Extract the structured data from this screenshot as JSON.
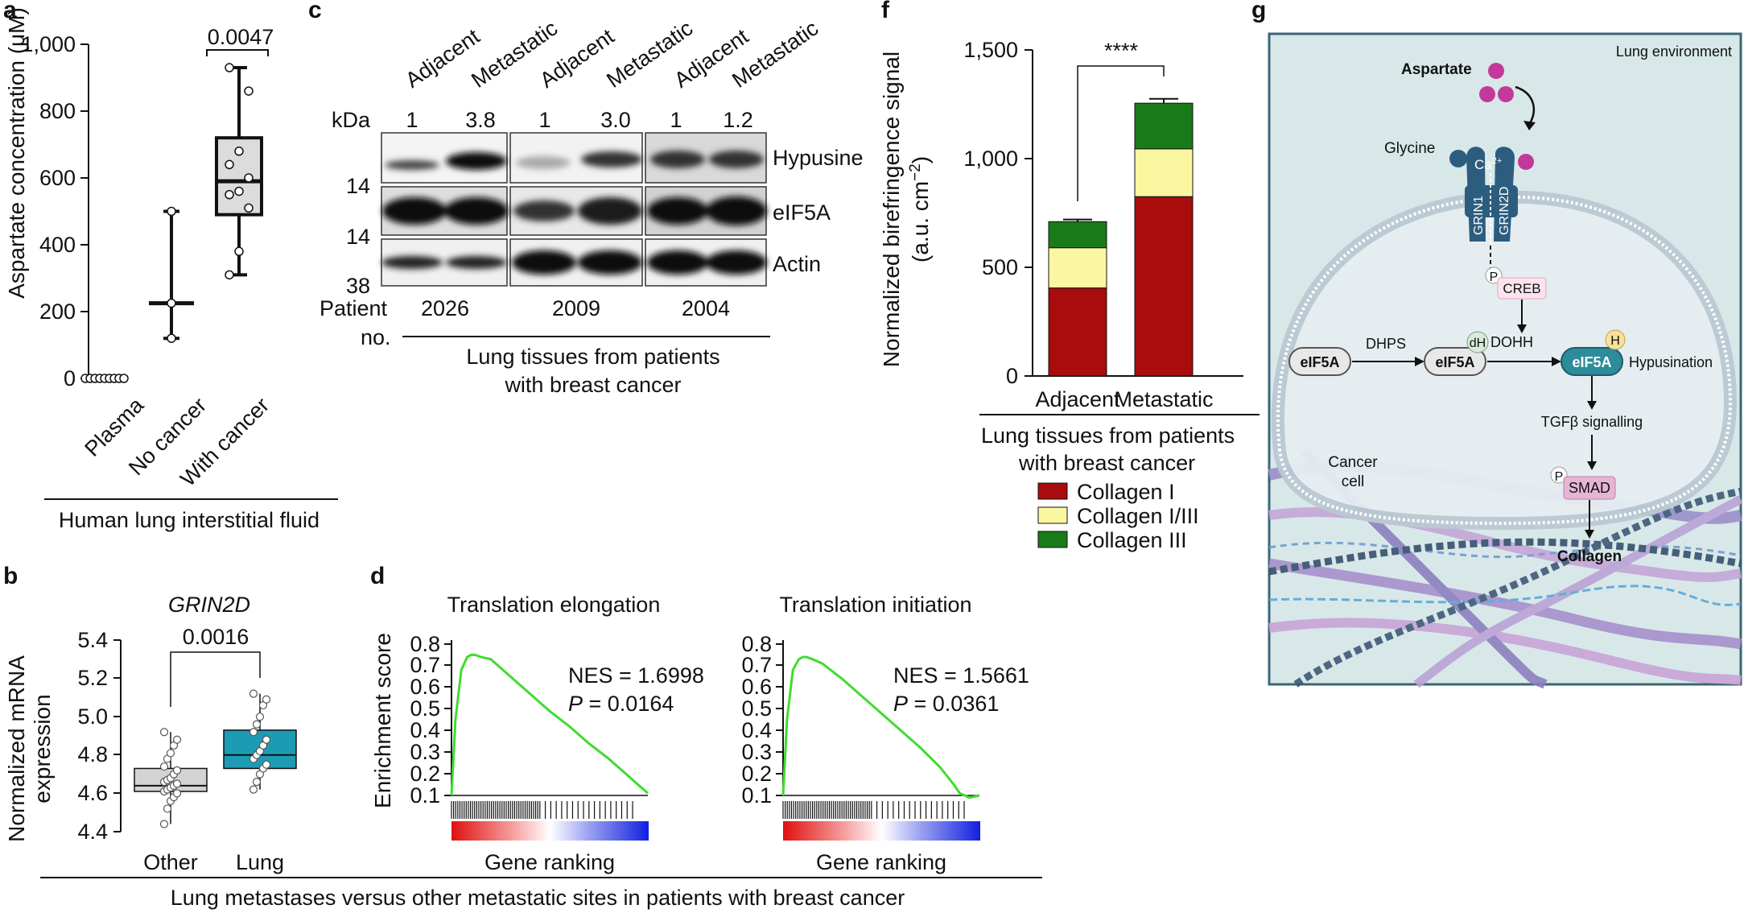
{
  "panels": {
    "a": {
      "letter": "a",
      "ylabel": "Aspartate concentration (μM)",
      "yticks": [
        "1,000",
        "800",
        "600",
        "400",
        "200",
        "0"
      ],
      "categories": [
        "Plasma",
        "No cancer",
        "With cancer"
      ],
      "pvalue": "0.0047",
      "group_label": "Human lung interstitial fluid"
    },
    "b": {
      "letter": "b",
      "gene": "GRIN2D",
      "ylabel_line1": "Normalized mRNA",
      "ylabel_line2": "expression",
      "yticks": [
        "5.4",
        "5.2",
        "5.0",
        "4.8",
        "4.6",
        "4.4"
      ],
      "categories": [
        "Other",
        "Lung"
      ],
      "pvalue": "0.0016",
      "colors": {
        "other": "#d3d3d3",
        "lung": "#1d9bb4"
      }
    },
    "c": {
      "letter": "c",
      "lanes": [
        "Adjacent",
        "Metastatic",
        "Adjacent",
        "Metastatic",
        "Adjacent",
        "Metastatic"
      ],
      "kda_label": "kDa",
      "ratios": [
        "1",
        "3.8",
        "1",
        "3.0",
        "1",
        "1.2"
      ],
      "kda_marks": [
        "14",
        "14",
        "38"
      ],
      "proteins": [
        "Hypusine",
        "eIF5A",
        "Actin"
      ],
      "patient_label_line1": "Patient",
      "patient_label_line2": "no.",
      "patients": [
        "2026",
        "2009",
        "2004"
      ],
      "group_line1": "Lung tissues from patients",
      "group_line2": "with breast cancer"
    },
    "d": {
      "letter": "d",
      "ylabel": "Enrichment score",
      "yticks": [
        "0.8",
        "0.7",
        "0.6",
        "0.5",
        "0.4",
        "0.3",
        "0.2",
        "0.1"
      ],
      "plots": [
        {
          "title": "Translation elongation",
          "nes": "NES = 1.6998",
          "p_label": "P",
          "p_value": " = 0.0164",
          "xlabel": "Gene ranking"
        },
        {
          "title": "Translation initiation",
          "nes": "NES = 1.5661",
          "p_label": "P",
          "p_value": " = 0.0361",
          "xlabel": "Gene ranking"
        }
      ],
      "footer": "Lung metastases versus other metastatic sites in patients with breast cancer",
      "curve_color": "#3fdc2f"
    },
    "f": {
      "letter": "f",
      "ylabel_line1": "Normalized birefringence signal",
      "ylabel_line2": "(a.u. cm",
      "ylabel_sup": "−2",
      "ylabel_close": ")",
      "yticks": [
        "1,500",
        "1,000",
        "500",
        "0"
      ],
      "significance": "****",
      "group_line1": "Lung tissues from patients",
      "group_line2": "with breast cancer",
      "legend": [
        "Collagen I",
        "Collagen I/III",
        "Collagen III"
      ],
      "colors": {
        "collagen_I": "#a80c0c",
        "collagen_I_III": "#fbf6a0",
        "collagen_III": "#197a1a"
      }
    },
    "g": {
      "letter": "g",
      "environment": "Lung environment",
      "aspartate": "Aspartate",
      "glycine": "Glycine",
      "ca": "Ca",
      "ca_sup": "2+",
      "grin1": "GRIN1",
      "grin2d": "GRIN2D",
      "p": "P",
      "creb": "CREB",
      "dhps": "DHPS",
      "dh": "dH",
      "dohh": "DOHH",
      "eif5a": "eIF5A",
      "h": "H",
      "hypusination": "Hypusination",
      "tgfb": "TGFβ signalling",
      "smad": "SMAD",
      "collagen": "Collagen",
      "cancer_line1": "Cancer",
      "cancer_line2": "cell"
    }
  },
  "chart_data": [
    {
      "panel": "a",
      "type": "box",
      "title": "",
      "xlabel": "Human lung interstitial fluid",
      "ylabel": "Aspartate concentration (μM)",
      "ylim": [
        0,
        1000
      ],
      "categories": [
        "Plasma",
        "No cancer",
        "With cancer"
      ],
      "boxes": [
        {
          "min": 0,
          "q1": 0,
          "median": 0,
          "q3": 0,
          "max": 0
        },
        {
          "min": 120,
          "q1": 225,
          "median": 225,
          "q3": 225,
          "max": 500
        },
        {
          "min": 310,
          "q1": 490,
          "median": 590,
          "q3": 720,
          "max": 930
        }
      ],
      "points": [
        [
          0,
          0,
          0,
          0,
          0,
          0,
          0,
          0,
          0
        ],
        [
          120,
          225,
          500
        ],
        [
          310,
          380,
          510,
          550,
          560,
          600,
          640,
          680,
          860,
          930
        ]
      ],
      "annotations": [
        "0.0047"
      ]
    },
    {
      "panel": "b",
      "type": "box",
      "title": "GRIN2D",
      "xlabel": "",
      "ylabel": "Normalized mRNA expression",
      "ylim": [
        4.4,
        5.4
      ],
      "categories": [
        "Other",
        "Lung"
      ],
      "boxes": [
        {
          "min": 4.44,
          "q1": 4.61,
          "median": 4.64,
          "q3": 4.73,
          "max": 4.92
        },
        {
          "min": 4.62,
          "q1": 4.73,
          "median": 4.8,
          "q3": 4.93,
          "max": 5.12
        }
      ],
      "points": [
        [
          4.44,
          4.52,
          4.56,
          4.58,
          4.6,
          4.61,
          4.62,
          4.63,
          4.64,
          4.65,
          4.66,
          4.67,
          4.68,
          4.7,
          4.72,
          4.74,
          4.78,
          4.81,
          4.85,
          4.88,
          4.92
        ],
        [
          4.62,
          4.66,
          4.7,
          4.73,
          4.75,
          4.78,
          4.8,
          4.82,
          4.85,
          4.88,
          4.92,
          4.96,
          5.0,
          5.06,
          5.09,
          5.12
        ]
      ],
      "annotations": [
        "0.0016"
      ]
    },
    {
      "panel": "d",
      "type": "line",
      "title": "Translation elongation",
      "xlabel": "Gene ranking",
      "ylabel": "Enrichment score",
      "ylim": [
        0.1,
        0.8
      ],
      "x": [
        0,
        0.02,
        0.05,
        0.08,
        0.1,
        0.12,
        0.15,
        0.2,
        0.3,
        0.4,
        0.5,
        0.6,
        0.7,
        0.8,
        0.9,
        0.95,
        1.0
      ],
      "series": [
        {
          "values": [
            0.1,
            0.45,
            0.68,
            0.74,
            0.75,
            0.75,
            0.74,
            0.73,
            0.65,
            0.57,
            0.49,
            0.42,
            0.34,
            0.27,
            0.19,
            0.15,
            0.11
          ]
        }
      ]
    },
    {
      "panel": "d",
      "type": "line",
      "title": "Translation initiation",
      "xlabel": "Gene ranking",
      "ylabel": "Enrichment score",
      "ylim": [
        0.1,
        0.8
      ],
      "x": [
        0,
        0.02,
        0.05,
        0.08,
        0.1,
        0.12,
        0.15,
        0.2,
        0.3,
        0.4,
        0.5,
        0.6,
        0.7,
        0.8,
        0.87,
        0.9,
        0.95,
        1.0
      ],
      "series": [
        {
          "values": [
            0.1,
            0.45,
            0.68,
            0.73,
            0.74,
            0.74,
            0.73,
            0.71,
            0.64,
            0.56,
            0.48,
            0.4,
            0.32,
            0.23,
            0.15,
            0.11,
            0.09,
            0.1
          ]
        }
      ]
    },
    {
      "panel": "f",
      "type": "bar",
      "title": "",
      "xlabel": "Lung tissues from patients with breast cancer",
      "ylabel": "Normalized birefringence signal (a.u. cm−2)",
      "ylim": [
        0,
        1500
      ],
      "categories": [
        "Adjacent",
        "Metastatic"
      ],
      "stacked": true,
      "series": [
        {
          "name": "Collagen I",
          "values": [
            405,
            825
          ],
          "errors": [
            70,
            45
          ]
        },
        {
          "name": "Collagen I/III",
          "values": [
            185,
            220
          ],
          "errors": [
            40,
            35
          ]
        },
        {
          "name": "Collagen III",
          "values": [
            120,
            210
          ],
          "errors": [
            10,
            20
          ]
        }
      ],
      "annotations": [
        "****"
      ]
    }
  ]
}
